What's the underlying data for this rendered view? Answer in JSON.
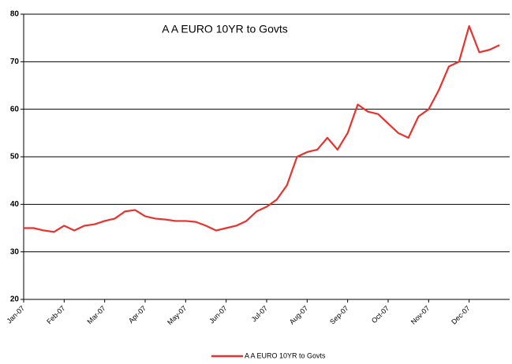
{
  "chart_data": {
    "type": "line",
    "title": "A A EURO 10YR to Govts",
    "categories": [
      "Jan-07",
      null,
      null,
      null,
      "Feb-07",
      null,
      null,
      null,
      "Mar-07",
      null,
      null,
      null,
      "Apr-07",
      null,
      null,
      null,
      "May-07",
      null,
      null,
      null,
      "Jun-07",
      null,
      null,
      null,
      "Jul-07",
      null,
      null,
      null,
      "Aug-07",
      null,
      null,
      null,
      "Sep-07",
      null,
      null,
      null,
      "Oct-07",
      null,
      null,
      null,
      "Nov-07",
      null,
      null,
      null,
      "Dec-07",
      null,
      null,
      null
    ],
    "series": [
      {
        "name": "A A EURO 10YR to Govts",
        "color": "#e8322e",
        "values": [
          35,
          35,
          34.5,
          34.2,
          35.5,
          34.5,
          35.5,
          35.8,
          36.5,
          37,
          38.5,
          38.8,
          37.5,
          37,
          36.8,
          36.5,
          36.5,
          36.3,
          35.5,
          34.5,
          35,
          35.5,
          36.5,
          38.5,
          39.5,
          41,
          44,
          50,
          51,
          51.5,
          54,
          51.5,
          55,
          61,
          59.5,
          59,
          57,
          55,
          54,
          58.5,
          60,
          64,
          69,
          70,
          77.5,
          72,
          72.5,
          73.5
        ]
      }
    ],
    "ylim": [
      20,
      80
    ],
    "yticks": [
      20,
      30,
      40,
      50,
      60,
      70,
      80
    ],
    "grid": true,
    "legend": "bottom"
  }
}
